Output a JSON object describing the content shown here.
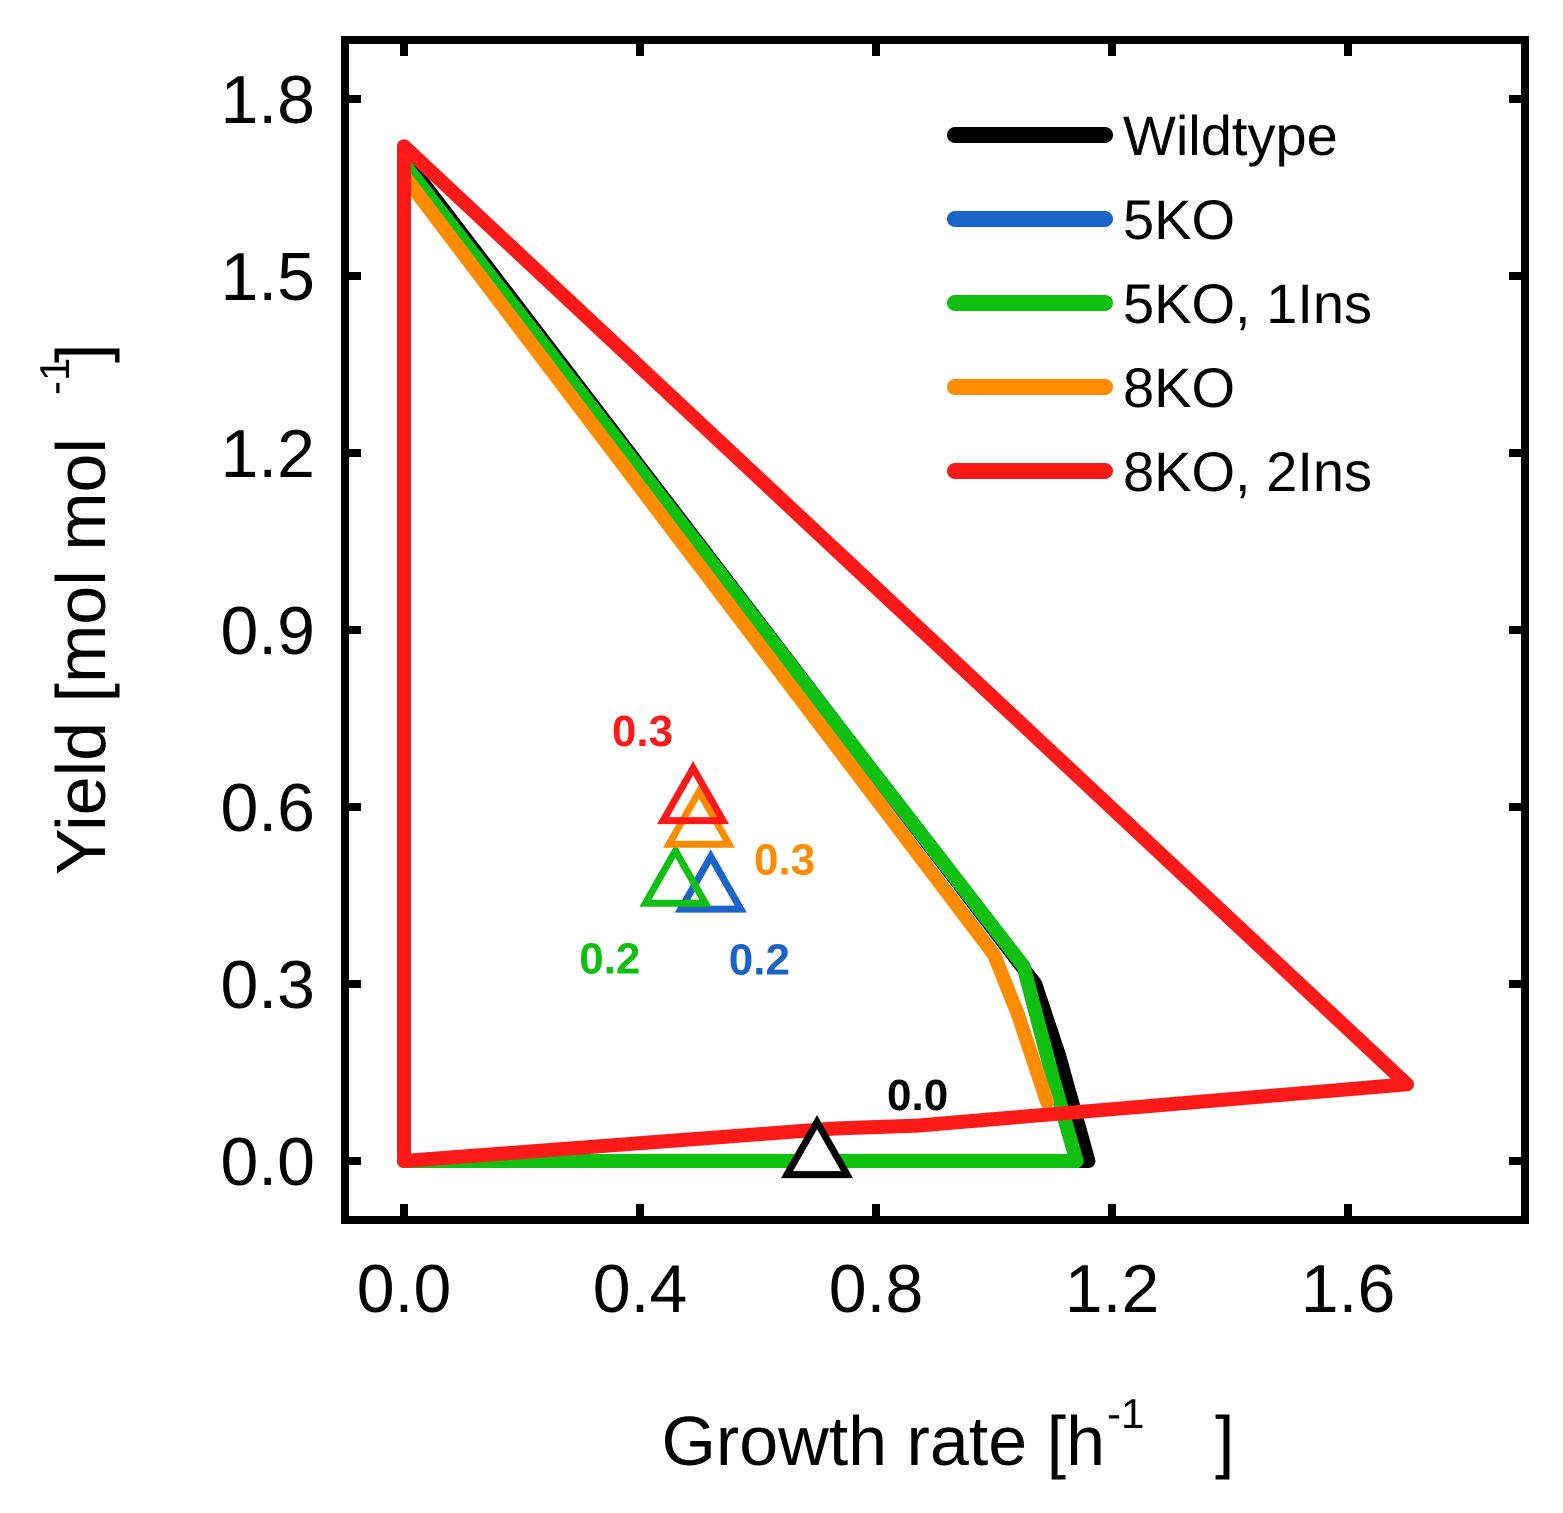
{
  "chart_data": {
    "type": "line",
    "xlabel": "Growth rate [h",
    "xlabel_sup": "-1",
    "xlabel_end": "]",
    "ylabel": "Yield [mol mol",
    "ylabel_sup": "-1",
    "ylabel_end": "]",
    "xlim": [
      -0.1,
      1.9
    ],
    "ylim": [
      -0.1,
      1.9
    ],
    "xticks": [
      0.0,
      0.4,
      0.8,
      1.2,
      1.6
    ],
    "xtick_labels": [
      "0.0",
      "0.4",
      "0.8",
      "1.2",
      "1.6"
    ],
    "yticks": [
      0.0,
      0.3,
      0.6,
      0.9,
      1.2,
      1.5,
      1.8
    ],
    "ytick_labels": [
      "0.0",
      "0.3",
      "0.6",
      "0.9",
      "1.2",
      "1.5",
      "1.8"
    ],
    "legend_position": "top-right",
    "series": [
      {
        "name": "Wildtype",
        "color": "#000000",
        "points": [
          [
            0,
            0
          ],
          [
            0,
            1.7
          ],
          [
            1.07,
            0.3
          ],
          [
            1.11,
            0.18
          ],
          [
            1.16,
            0
          ],
          [
            0,
            0
          ]
        ]
      },
      {
        "name": "5KO",
        "color": "#1a63c9",
        "points": [
          [
            0,
            0
          ],
          [
            0,
            1.69
          ],
          [
            1.05,
            0.33
          ],
          [
            1.1,
            0.14
          ],
          [
            1.14,
            0
          ],
          [
            0,
            0
          ]
        ]
      },
      {
        "name": "5KO, 1Ins",
        "color": "#10c010",
        "points": [
          [
            0,
            0
          ],
          [
            0,
            1.69
          ],
          [
            1.05,
            0.33
          ],
          [
            1.1,
            0.14
          ],
          [
            1.14,
            0
          ],
          [
            0,
            0
          ]
        ]
      },
      {
        "name": "8KO",
        "color": "#ff8c00",
        "points": [
          [
            0,
            0
          ],
          [
            0,
            1.67
          ],
          [
            1.0,
            0.35
          ],
          [
            1.04,
            0.25
          ],
          [
            1.09,
            0.1
          ]
        ]
      },
      {
        "name": "8KO, 2Ins",
        "color": "#ff1a1a",
        "points": [
          [
            0,
            0
          ],
          [
            0,
            1.72
          ],
          [
            1.7,
            0.13
          ],
          [
            0.87,
            0.06
          ],
          [
            0.73,
            0.055
          ],
          [
            0,
            0
          ]
        ]
      }
    ],
    "markers": [
      {
        "series": "Wildtype",
        "x": 0.7,
        "y": 0.01,
        "label": "0.0",
        "color": "#000000"
      },
      {
        "series": "5KO",
        "x": 0.52,
        "y": 0.46,
        "label": "0.2",
        "color": "#1a63c9"
      },
      {
        "series": "5KO, 1Ins",
        "x": 0.46,
        "y": 0.47,
        "label": "0.2",
        "color": "#10c010"
      },
      {
        "series": "8KO",
        "x": 0.5,
        "y": 0.57,
        "label": "0.3",
        "color": "#ff8c00"
      },
      {
        "series": "8KO, 2Ins",
        "x": 0.49,
        "y": 0.61,
        "label": "0.3",
        "color": "#ff1a1a"
      }
    ]
  }
}
